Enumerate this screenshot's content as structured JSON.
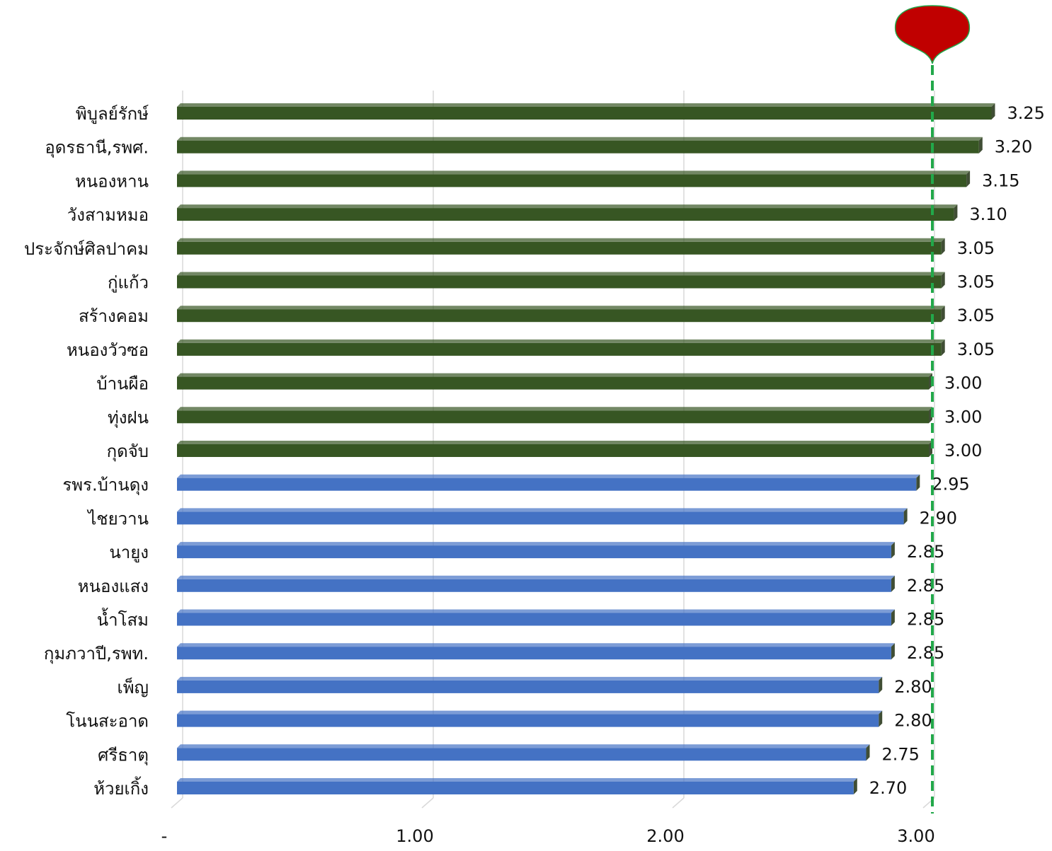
{
  "chart_data": {
    "type": "bar",
    "orientation": "horizontal",
    "categories": [
      "พิบูลย์รักษ์",
      "อุดรธานี,รพศ.",
      "หนองหาน",
      "วังสามหมอ",
      "ประจักษ์ศิลปาคม",
      "กู่แก้ว",
      "สร้างคอม",
      "หนองวัวซอ",
      "บ้านผือ",
      "ทุ่งฝน",
      "กุดจับ",
      "รพร.บ้านดุง",
      "ไชยวาน",
      "นายูง",
      "หนองแสง",
      "น้ำโสม",
      "กุมภวาปี,รพท.",
      "เพ็ญ",
      "โนนสะอาด",
      "ศรีธาตุ",
      "ห้วยเกิ้ง"
    ],
    "values": [
      3.25,
      3.2,
      3.15,
      3.1,
      3.05,
      3.05,
      3.05,
      3.05,
      3.0,
      3.0,
      3.0,
      2.95,
      2.9,
      2.85,
      2.85,
      2.85,
      2.85,
      2.8,
      2.8,
      2.75,
      2.7
    ],
    "value_labels": [
      "3.25",
      "3.20",
      "3.15",
      "3.10",
      "3.05",
      "3.05",
      "3.05",
      "3.05",
      "3.00",
      "3.00",
      "3.00",
      "2.95",
      "2.90",
      "2.85",
      "2.85",
      "2.85",
      "2.85",
      "2.80",
      "2.80",
      "2.75",
      "2.70"
    ],
    "xlim": [
      0,
      3.3
    ],
    "x_ticks": [
      0,
      1,
      2,
      3
    ],
    "x_tick_labels": [
      "-",
      "1.00",
      "2.00",
      "3.00"
    ],
    "gridlines": true,
    "target_value": 3.0,
    "threshold": 3.0,
    "colors": {
      "above_target": "#375623",
      "below_target": "#4472C4",
      "target_line": "#22A84A",
      "marker": "#C00000"
    }
  }
}
